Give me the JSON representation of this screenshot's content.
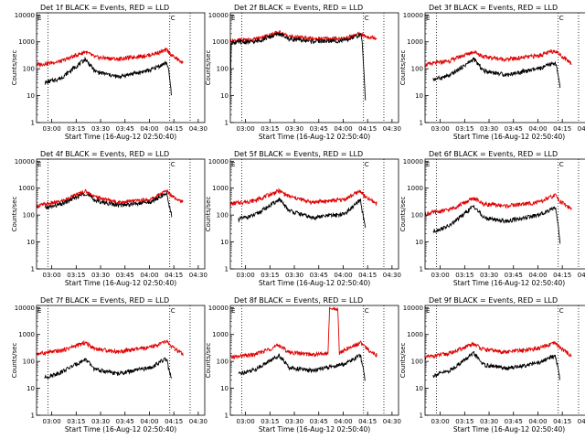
{
  "colors": {
    "events": "#000000",
    "lld": "#e00000",
    "axis": "#000000"
  },
  "chart_data": {
    "type": "line",
    "layout": "3x3 grid",
    "xlabel": "Start Time (16-Aug-12 02:50:40)",
    "ylabel": "Counts/sec",
    "x_ticks": [
      "03:00",
      "03:15",
      "03:30",
      "03:45",
      "04:00",
      "04:15",
      "04:30"
    ],
    "y_ticks": [
      "1",
      "10",
      "100",
      "1000",
      "10000"
    ],
    "y_scale": "log",
    "ylim": [
      1,
      12000
    ],
    "xlim": [
      "02:50:40",
      "04:34:00"
    ],
    "markers": {
      "E_label": "E",
      "C_label": "C",
      "E_time": "02:50:40",
      "C_time": "04:12:30"
    },
    "dotted_lines": [
      "02:57:40",
      "04:12:30",
      "04:25:00"
    ],
    "panels": [
      {
        "title": "Det 1f BLACK = Events, RED = LLD",
        "lld": [
          [
            0,
            140
          ],
          [
            15,
            190
          ],
          [
            30,
            430
          ],
          [
            36,
            270
          ],
          [
            50,
            230
          ],
          [
            70,
            330
          ],
          [
            80,
            500
          ],
          [
            83,
            320
          ],
          [
            90,
            160
          ]
        ],
        "events": [
          [
            5,
            30
          ],
          [
            15,
            45
          ],
          [
            30,
            230
          ],
          [
            36,
            80
          ],
          [
            50,
            50
          ],
          [
            70,
            90
          ],
          [
            80,
            170
          ],
          [
            81,
            100
          ],
          [
            83,
            10
          ]
        ]
      },
      {
        "title": "Det 2f BLACK = Events, RED = LLD",
        "lld": [
          [
            0,
            1100
          ],
          [
            15,
            1250
          ],
          [
            30,
            2300
          ],
          [
            36,
            1600
          ],
          [
            50,
            1300
          ],
          [
            70,
            1350
          ],
          [
            80,
            2000
          ],
          [
            83,
            1600
          ],
          [
            90,
            1400
          ]
        ],
        "events": [
          [
            0,
            5
          ],
          [
            0.5,
            950
          ],
          [
            15,
            1000
          ],
          [
            30,
            2000
          ],
          [
            36,
            1300
          ],
          [
            50,
            1050
          ],
          [
            70,
            1100
          ],
          [
            80,
            1800
          ],
          [
            81,
            1000
          ],
          [
            83,
            8
          ]
        ]
      },
      {
        "title": "Det 3f BLACK = Events, RED = LLD",
        "lld": [
          [
            0,
            140
          ],
          [
            15,
            200
          ],
          [
            30,
            440
          ],
          [
            36,
            280
          ],
          [
            50,
            220
          ],
          [
            70,
            310
          ],
          [
            80,
            480
          ],
          [
            83,
            330
          ],
          [
            90,
            160
          ]
        ],
        "events": [
          [
            5,
            40
          ],
          [
            15,
            55
          ],
          [
            30,
            230
          ],
          [
            36,
            85
          ],
          [
            50,
            60
          ],
          [
            70,
            100
          ],
          [
            80,
            170
          ],
          [
            81,
            100
          ],
          [
            83,
            20
          ]
        ]
      },
      {
        "title": "Det 4f BLACK = Events, RED = LLD",
        "lld": [
          [
            0,
            220
          ],
          [
            15,
            320
          ],
          [
            30,
            780
          ],
          [
            36,
            480
          ],
          [
            50,
            300
          ],
          [
            70,
            380
          ],
          [
            80,
            800
          ],
          [
            83,
            550
          ],
          [
            90,
            300
          ]
        ],
        "events": [
          [
            5,
            180
          ],
          [
            15,
            250
          ],
          [
            30,
            650
          ],
          [
            36,
            350
          ],
          [
            50,
            230
          ],
          [
            70,
            300
          ],
          [
            80,
            650
          ],
          [
            81,
            300
          ],
          [
            83,
            100
          ]
        ]
      },
      {
        "title": "Det 5f BLACK = Events, RED = LLD",
        "lld": [
          [
            0,
            260
          ],
          [
            15,
            350
          ],
          [
            30,
            800
          ],
          [
            36,
            500
          ],
          [
            50,
            300
          ],
          [
            70,
            380
          ],
          [
            80,
            800
          ],
          [
            83,
            450
          ],
          [
            90,
            270
          ]
        ],
        "events": [
          [
            5,
            70
          ],
          [
            15,
            100
          ],
          [
            30,
            380
          ],
          [
            36,
            150
          ],
          [
            50,
            80
          ],
          [
            70,
            110
          ],
          [
            80,
            360
          ],
          [
            81,
            150
          ],
          [
            83,
            30
          ]
        ]
      },
      {
        "title": "Det 6f BLACK = Events, RED = LLD",
        "lld": [
          [
            0,
            110
          ],
          [
            15,
            160
          ],
          [
            30,
            420
          ],
          [
            36,
            260
          ],
          [
            50,
            220
          ],
          [
            70,
            300
          ],
          [
            80,
            550
          ],
          [
            83,
            330
          ],
          [
            90,
            170
          ]
        ],
        "events": [
          [
            5,
            25
          ],
          [
            15,
            40
          ],
          [
            30,
            220
          ],
          [
            36,
            80
          ],
          [
            50,
            60
          ],
          [
            70,
            100
          ],
          [
            80,
            200
          ],
          [
            81,
            100
          ],
          [
            83,
            10
          ]
        ]
      },
      {
        "title": "Det 7f BLACK = Events, RED = LLD",
        "lld": [
          [
            0,
            190
          ],
          [
            15,
            250
          ],
          [
            30,
            500
          ],
          [
            36,
            300
          ],
          [
            50,
            230
          ],
          [
            70,
            330
          ],
          [
            80,
            560
          ],
          [
            83,
            350
          ],
          [
            90,
            180
          ]
        ],
        "events": [
          [
            5,
            25
          ],
          [
            15,
            40
          ],
          [
            30,
            120
          ],
          [
            36,
            50
          ],
          [
            50,
            35
          ],
          [
            70,
            60
          ],
          [
            80,
            130
          ],
          [
            81,
            60
          ],
          [
            83,
            20
          ]
        ]
      },
      {
        "title": "Det 8f BLACK = Events, RED = LLD",
        "lld": [
          [
            0,
            140
          ],
          [
            15,
            180
          ],
          [
            30,
            400
          ],
          [
            36,
            220
          ],
          [
            50,
            180
          ],
          [
            60,
            200
          ],
          [
            61,
            9000
          ],
          [
            66,
            9000
          ],
          [
            67,
            200
          ],
          [
            70,
            260
          ],
          [
            80,
            500
          ],
          [
            83,
            330
          ],
          [
            90,
            170
          ]
        ],
        "events": [
          [
            5,
            35
          ],
          [
            15,
            50
          ],
          [
            30,
            170
          ],
          [
            36,
            60
          ],
          [
            50,
            45
          ],
          [
            70,
            80
          ],
          [
            80,
            170
          ],
          [
            81,
            80
          ],
          [
            83,
            20
          ]
        ]
      },
      {
        "title": "Det 9f BLACK = Events, RED = LLD",
        "lld": [
          [
            0,
            140
          ],
          [
            15,
            200
          ],
          [
            30,
            450
          ],
          [
            36,
            280
          ],
          [
            50,
            220
          ],
          [
            70,
            310
          ],
          [
            80,
            480
          ],
          [
            83,
            330
          ],
          [
            90,
            160
          ]
        ],
        "events": [
          [
            5,
            30
          ],
          [
            15,
            45
          ],
          [
            30,
            200
          ],
          [
            36,
            75
          ],
          [
            50,
            55
          ],
          [
            70,
            90
          ],
          [
            80,
            170
          ],
          [
            81,
            90
          ],
          [
            83,
            20
          ]
        ]
      }
    ]
  }
}
